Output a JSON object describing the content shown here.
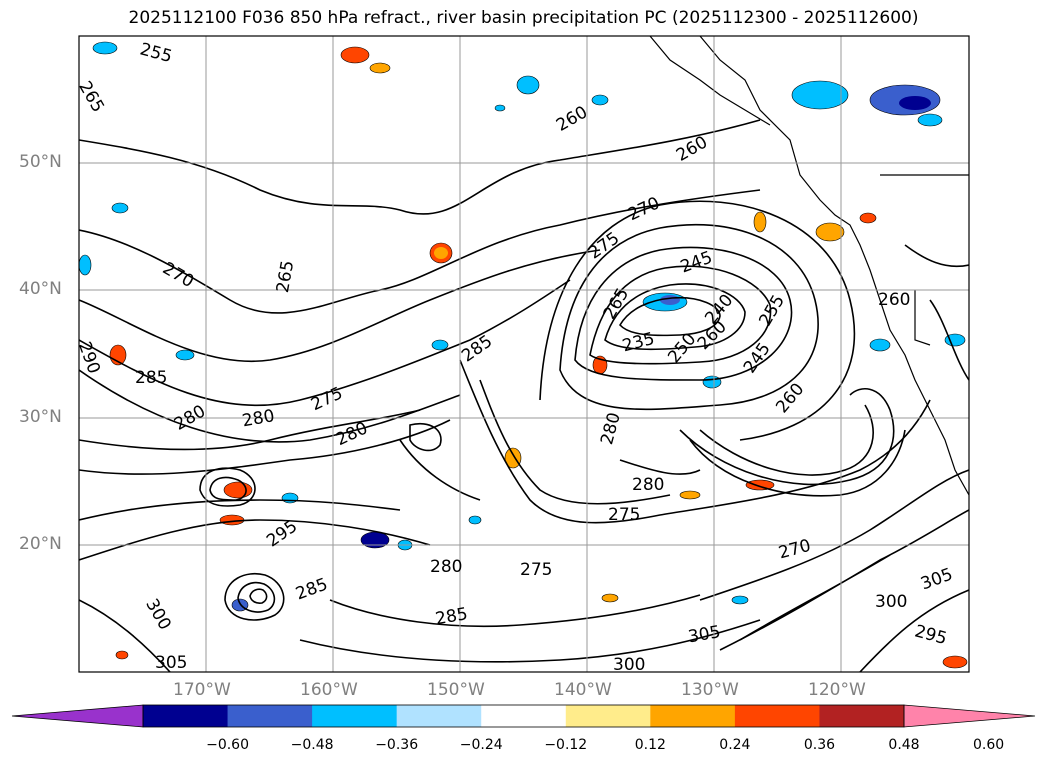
{
  "title": "2025112100 F036 850 hPa refract., river basin precipitation PC (2025112300 - 2025112600)",
  "map": {
    "lat_labels": [
      "50°N",
      "40°N",
      "30°N",
      "20°N"
    ],
    "lon_labels": [
      "170°W",
      "160°W",
      "150°W",
      "140°W",
      "130°W",
      "120°W"
    ],
    "contour_labels": [
      "255",
      "265",
      "260",
      "260",
      "270",
      "275",
      "245",
      "235",
      "250",
      "260",
      "265",
      "240",
      "245",
      "260",
      "255",
      "260",
      "270",
      "265",
      "285",
      "280",
      "275",
      "280",
      "285",
      "280",
      "290",
      "295",
      "285",
      "300",
      "305",
      "300",
      "305",
      "295",
      "305",
      "300",
      "285",
      "280",
      "270",
      "275",
      "280",
      "280",
      "275"
    ]
  },
  "colorbar": {
    "ticks": [
      "−0.60",
      "−0.48",
      "−0.36",
      "−0.24",
      "−0.12",
      "0.12",
      "0.24",
      "0.36",
      "0.48",
      "0.60"
    ],
    "colors": [
      "#9932cc",
      "#000090",
      "#3a5fcd",
      "#00bfff",
      "#b0e2ff",
      "#ffffff",
      "#ffec8b",
      "#ffa500",
      "#ff4500",
      "#b22222",
      "#ff83aa"
    ]
  }
}
